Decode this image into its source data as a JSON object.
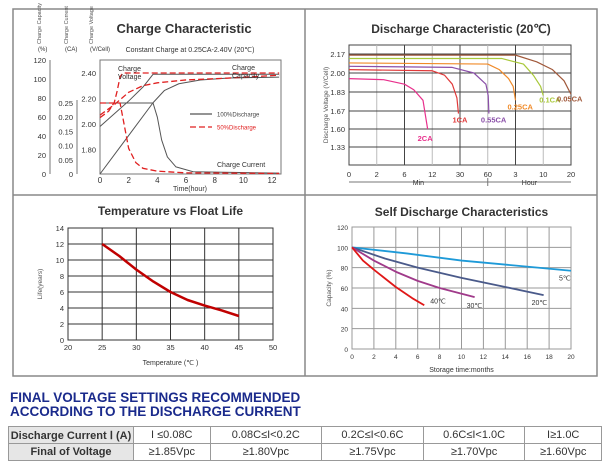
{
  "chart_data": [
    {
      "type": "line",
      "title": "Charge Characteristic",
      "subtitle": "Constant Charge at 0.25CA-2.40V  (20℃)",
      "xlabel": "Time(hour)",
      "x_ticks": [
        0,
        2,
        4,
        6,
        8,
        10,
        12
      ],
      "xlim": [
        0,
        12.5
      ],
      "axes": {
        "capacity": {
          "label": "Charge Capacity",
          "unit": "(%)",
          "ticks": [
            0,
            20,
            40,
            60,
            80,
            100,
            120
          ],
          "ylim": [
            0,
            120
          ]
        },
        "current": {
          "label": "Charge Current",
          "unit": "(CA)",
          "ticks": [
            "0",
            "0.05",
            "0.10",
            "0.15",
            "0.20",
            "0.25"
          ],
          "ylim": [
            0,
            0.25
          ]
        },
        "voltage": {
          "label": "Charge Voltage",
          "unit": "(V/Cell)",
          "ticks": [
            "1.80",
            "2.00",
            "2.20",
            "2.40"
          ],
          "ylim": [
            1.6,
            2.5
          ]
        }
      },
      "legend": [
        {
          "name": "100%Discharge",
          "color": "#555555",
          "style": "solid"
        },
        {
          "name": "50%Discharge",
          "color": "#e02020",
          "style": "dashed"
        }
      ],
      "annotations": [
        "Charge Voltage",
        "Charge Capacity",
        "Charge Current"
      ],
      "series": [
        {
          "group": "100%Discharge",
          "axis": "voltage",
          "points": [
            [
              0,
              1.98
            ],
            [
              1,
              2.08
            ],
            [
              2,
              2.18
            ],
            [
              3,
              2.29
            ],
            [
              3.7,
              2.39
            ],
            [
              12.5,
              2.39
            ]
          ]
        },
        {
          "group": "100%Discharge",
          "axis": "current",
          "points": [
            [
              0,
              0.25
            ],
            [
              3.7,
              0.25
            ],
            [
              4,
              0.2
            ],
            [
              4.3,
              0.12
            ],
            [
              4.7,
              0.06
            ],
            [
              5.3,
              0.025
            ],
            [
              6.5,
              0.008
            ],
            [
              12.5,
              0.003
            ]
          ]
        },
        {
          "group": "100%Discharge",
          "axis": "capacity",
          "points": [
            [
              0,
              0
            ],
            [
              3.7,
              75
            ],
            [
              4.5,
              88
            ],
            [
              5.5,
              95
            ],
            [
              7,
              99
            ],
            [
              9,
              101
            ],
            [
              12.5,
              102
            ]
          ]
        },
        {
          "group": "50%Discharge",
          "axis": "voltage",
          "points": [
            [
              0,
              2.05
            ],
            [
              0.6,
              2.1
            ],
            [
              1,
              2.17
            ],
            [
              1.2,
              2.26
            ],
            [
              1.4,
              2.37
            ],
            [
              1.6,
              2.4
            ],
            [
              12.5,
              2.4
            ]
          ]
        },
        {
          "group": "50%Discharge",
          "axis": "current",
          "points": [
            [
              0,
              0.25
            ],
            [
              1.4,
              0.25
            ],
            [
              1.7,
              0.17
            ],
            [
              2,
              0.09
            ],
            [
              2.5,
              0.04
            ],
            [
              3,
              0.02
            ],
            [
              4,
              0.01
            ],
            [
              6,
              0.004
            ],
            [
              12.5,
              0.002
            ]
          ]
        },
        {
          "group": "50%Discharge",
          "axis": "capacity",
          "points": [
            [
              0,
              62
            ],
            [
              1,
              73
            ],
            [
              2,
              86
            ],
            [
              3,
              93
            ],
            [
              4,
              96
            ],
            [
              6,
              99
            ],
            [
              9,
              101
            ],
            [
              12.5,
              104
            ]
          ]
        }
      ]
    },
    {
      "type": "line",
      "title": "Discharge Characteristic (20℃)",
      "ylabel": "Discharge Voltage (V/Cell)",
      "x_ticks": [
        "0",
        "2",
        "6",
        "12",
        "30",
        "60",
        "3",
        "10",
        "20"
      ],
      "x_tick_minutes": [
        0,
        2,
        6,
        12,
        30,
        60,
        180,
        600,
        1200
      ],
      "x_groups": [
        "Min",
        "Hour"
      ],
      "y_ticks": [
        2.17,
        2.0,
        1.83,
        1.67,
        1.6,
        1.33
      ],
      "grid": true,
      "series": [
        {
          "name": "2CA",
          "color": "#e8308c",
          "points_min_v": [
            [
              0,
              1.95
            ],
            [
              3,
              1.94
            ],
            [
              6,
              1.9
            ],
            [
              8,
              1.85
            ],
            [
              10,
              1.76
            ],
            [
              11,
              1.6
            ]
          ]
        },
        {
          "name": "1CA",
          "color": "#e03a3a",
          "points_min_v": [
            [
              0,
              2.03
            ],
            [
              12,
              2.02
            ],
            [
              20,
              1.98
            ],
            [
              25,
              1.9
            ],
            [
              28,
              1.78
            ],
            [
              29,
              1.66
            ]
          ]
        },
        {
          "name": "0.55CA",
          "color": "#8a4fa8",
          "points_min_v": [
            [
              0,
              2.06
            ],
            [
              25,
              2.05
            ],
            [
              45,
              2.0
            ],
            [
              58,
              1.9
            ],
            [
              62,
              1.8
            ],
            [
              65,
              1.66
            ]
          ]
        },
        {
          "name": "0.25CA",
          "color": "#f08a28",
          "points_min_v": [
            [
              0,
              2.09
            ],
            [
              60,
              2.08
            ],
            [
              110,
              2.03
            ],
            [
              150,
              1.95
            ],
            [
              170,
              1.88
            ],
            [
              180,
              1.76
            ]
          ]
        },
        {
          "name": "0.1CA",
          "color": "#a8c83a",
          "points_min_v": [
            [
              0,
              2.13
            ],
            [
              120,
              2.13
            ],
            [
              300,
              2.08
            ],
            [
              450,
              1.98
            ],
            [
              560,
              1.88
            ],
            [
              600,
              1.8
            ]
          ]
        },
        {
          "name": "0.05CA",
          "color": "#a0583a",
          "points_min_v": [
            [
              0,
              2.16
            ],
            [
              180,
              2.16
            ],
            [
              500,
              2.1
            ],
            [
              800,
              2.03
            ],
            [
              1050,
              1.93
            ],
            [
              1200,
              1.81
            ]
          ]
        }
      ]
    },
    {
      "type": "line",
      "title": "Temperature vs Float Life",
      "xlabel": "Temperature (℃ )",
      "ylabel": "Life(years)",
      "xlim": [
        20,
        50
      ],
      "ylim": [
        0,
        14
      ],
      "x_ticks": [
        20,
        25,
        30,
        35,
        40,
        45,
        50
      ],
      "y_ticks": [
        0,
        2,
        4,
        6,
        8,
        10,
        12,
        14
      ],
      "grid": true,
      "series": [
        {
          "color": "#c00000",
          "points": [
            [
              25,
              12
            ],
            [
              27.5,
              10.5
            ],
            [
              30,
              8.8
            ],
            [
              32.5,
              7.3
            ],
            [
              35,
              6
            ],
            [
              37.5,
              5
            ],
            [
              40,
              4.3
            ],
            [
              42.5,
              3.7
            ],
            [
              45,
              3
            ]
          ]
        }
      ]
    },
    {
      "type": "line",
      "title": "Self Discharge Characteristics",
      "xlabel": "Storage time:months",
      "ylabel": "Capacity (%)",
      "xlim": [
        0,
        20
      ],
      "ylim": [
        0,
        120
      ],
      "x_ticks": [
        0,
        2,
        4,
        6,
        8,
        10,
        12,
        14,
        16,
        18,
        20
      ],
      "y_ticks": [
        0,
        20,
        40,
        60,
        80,
        100,
        120
      ],
      "grid": true,
      "series": [
        {
          "name": "5℃",
          "color": "#1e9ad8",
          "points": [
            [
              0,
              100
            ],
            [
              5,
              94
            ],
            [
              10,
              87
            ],
            [
              15,
              82
            ],
            [
              20,
              77
            ]
          ]
        },
        {
          "name": "20℃",
          "color": "#4a5a8a",
          "points": [
            [
              0,
              100
            ],
            [
              3,
              89
            ],
            [
              6,
              80
            ],
            [
              10,
              70
            ],
            [
              14,
              61
            ],
            [
              17.5,
              53
            ]
          ]
        },
        {
          "name": "30℃",
          "color": "#a03a8a",
          "points": [
            [
              0,
              100
            ],
            [
              2,
              87
            ],
            [
              4,
              76
            ],
            [
              6,
              67
            ],
            [
              8,
              60
            ],
            [
              11.2,
              51
            ]
          ]
        },
        {
          "name": "40℃",
          "color": "#e01818",
          "points": [
            [
              0,
              100
            ],
            [
              1,
              87
            ],
            [
              2,
              78
            ],
            [
              4,
              61
            ],
            [
              5.5,
              50
            ],
            [
              6.6,
              43
            ]
          ]
        }
      ]
    }
  ],
  "recommendation": {
    "heading_line1": "FINAL VOLTAGE SETTINGS RECOMMENDED",
    "heading_line2": "ACCORDING TO THE DISCHARGE CURRENT",
    "row_current": {
      "label": "Discharge Current Ⅰ (A)",
      "values": [
        "I ≤0.08C",
        "0.08C≤I<0.2C",
        "0.2C≤I<0.6C",
        "0.6C≤I<1.0C",
        "I≥1.0C"
      ]
    },
    "row_voltage": {
      "label": "Final of Voltage",
      "values": [
        "≥1.85Vpc",
        "≥1.80Vpc",
        "≥1.75Vpc",
        "≥1.70Vpc",
        "≥1.60Vpc"
      ]
    }
  }
}
